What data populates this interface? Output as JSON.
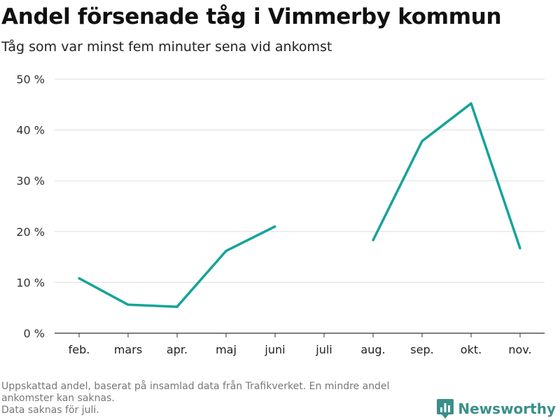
{
  "header": {
    "title": "Andel försenade tåg i Vimmerby kommun",
    "subtitle": "Tåg som var minst fem minuter sena vid ankomst"
  },
  "chart_data": {
    "type": "line",
    "title": "Andel försenade tåg i Vimmerby kommun",
    "subtitle": "Tåg som var minst fem minuter sena vid ankomst",
    "xlabel": "",
    "ylabel": "",
    "categories": [
      "feb.",
      "mars",
      "apr.",
      "maj",
      "juni",
      "juli",
      "aug.",
      "sep.",
      "okt.",
      "nov."
    ],
    "series": [
      {
        "name": "Andel försenade tåg",
        "values": [
          10.8,
          5.6,
          5.2,
          16.2,
          21.0,
          null,
          18.3,
          37.8,
          45.2,
          16.7
        ]
      }
    ],
    "ylim": [
      0,
      50
    ],
    "yticks": [
      0,
      10,
      20,
      30,
      40,
      50
    ],
    "ytick_labels": [
      "0 %",
      "10 %",
      "20 %",
      "30 %",
      "40 %",
      "50 %"
    ],
    "grid": true,
    "line_color": "#16a39a"
  },
  "footnote": {
    "line1": "Uppskattad andel, baserat på insamlad data från Trafikverket. En mindre andel",
    "line2": "ankomster kan saknas.",
    "line3": "Data saknas för juli."
  },
  "brand": {
    "name": "Newsworthy",
    "icon": "newsworthy-logo-icon",
    "color": "#3a8f8a"
  }
}
